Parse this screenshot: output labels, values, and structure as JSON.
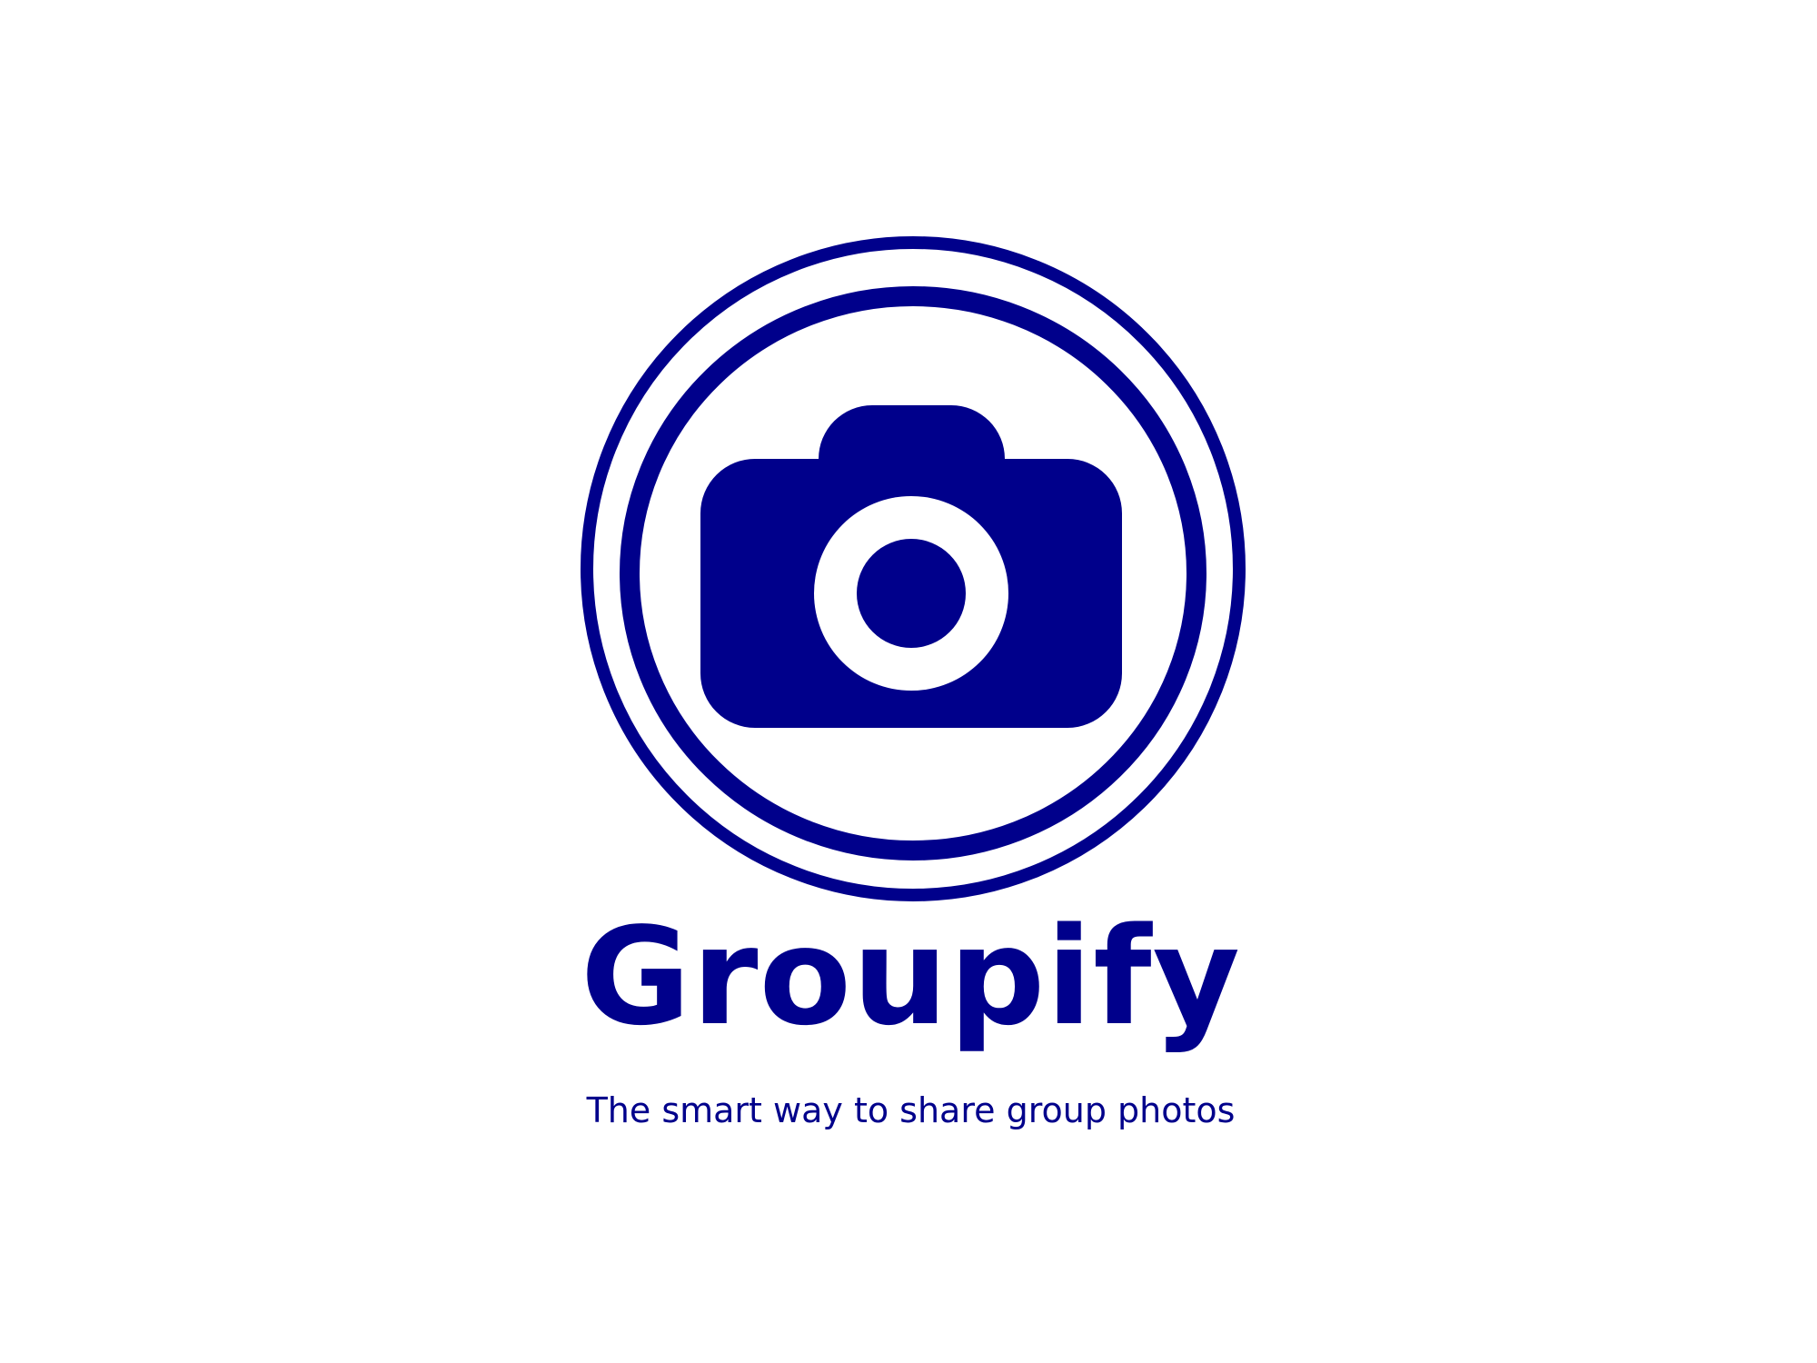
{
  "logo": {
    "icon": "camera-icon",
    "color": "#00008B",
    "background": "#FFFFFF"
  },
  "brand": {
    "name": "Groupify",
    "tagline": "The smart way to share group photos"
  }
}
